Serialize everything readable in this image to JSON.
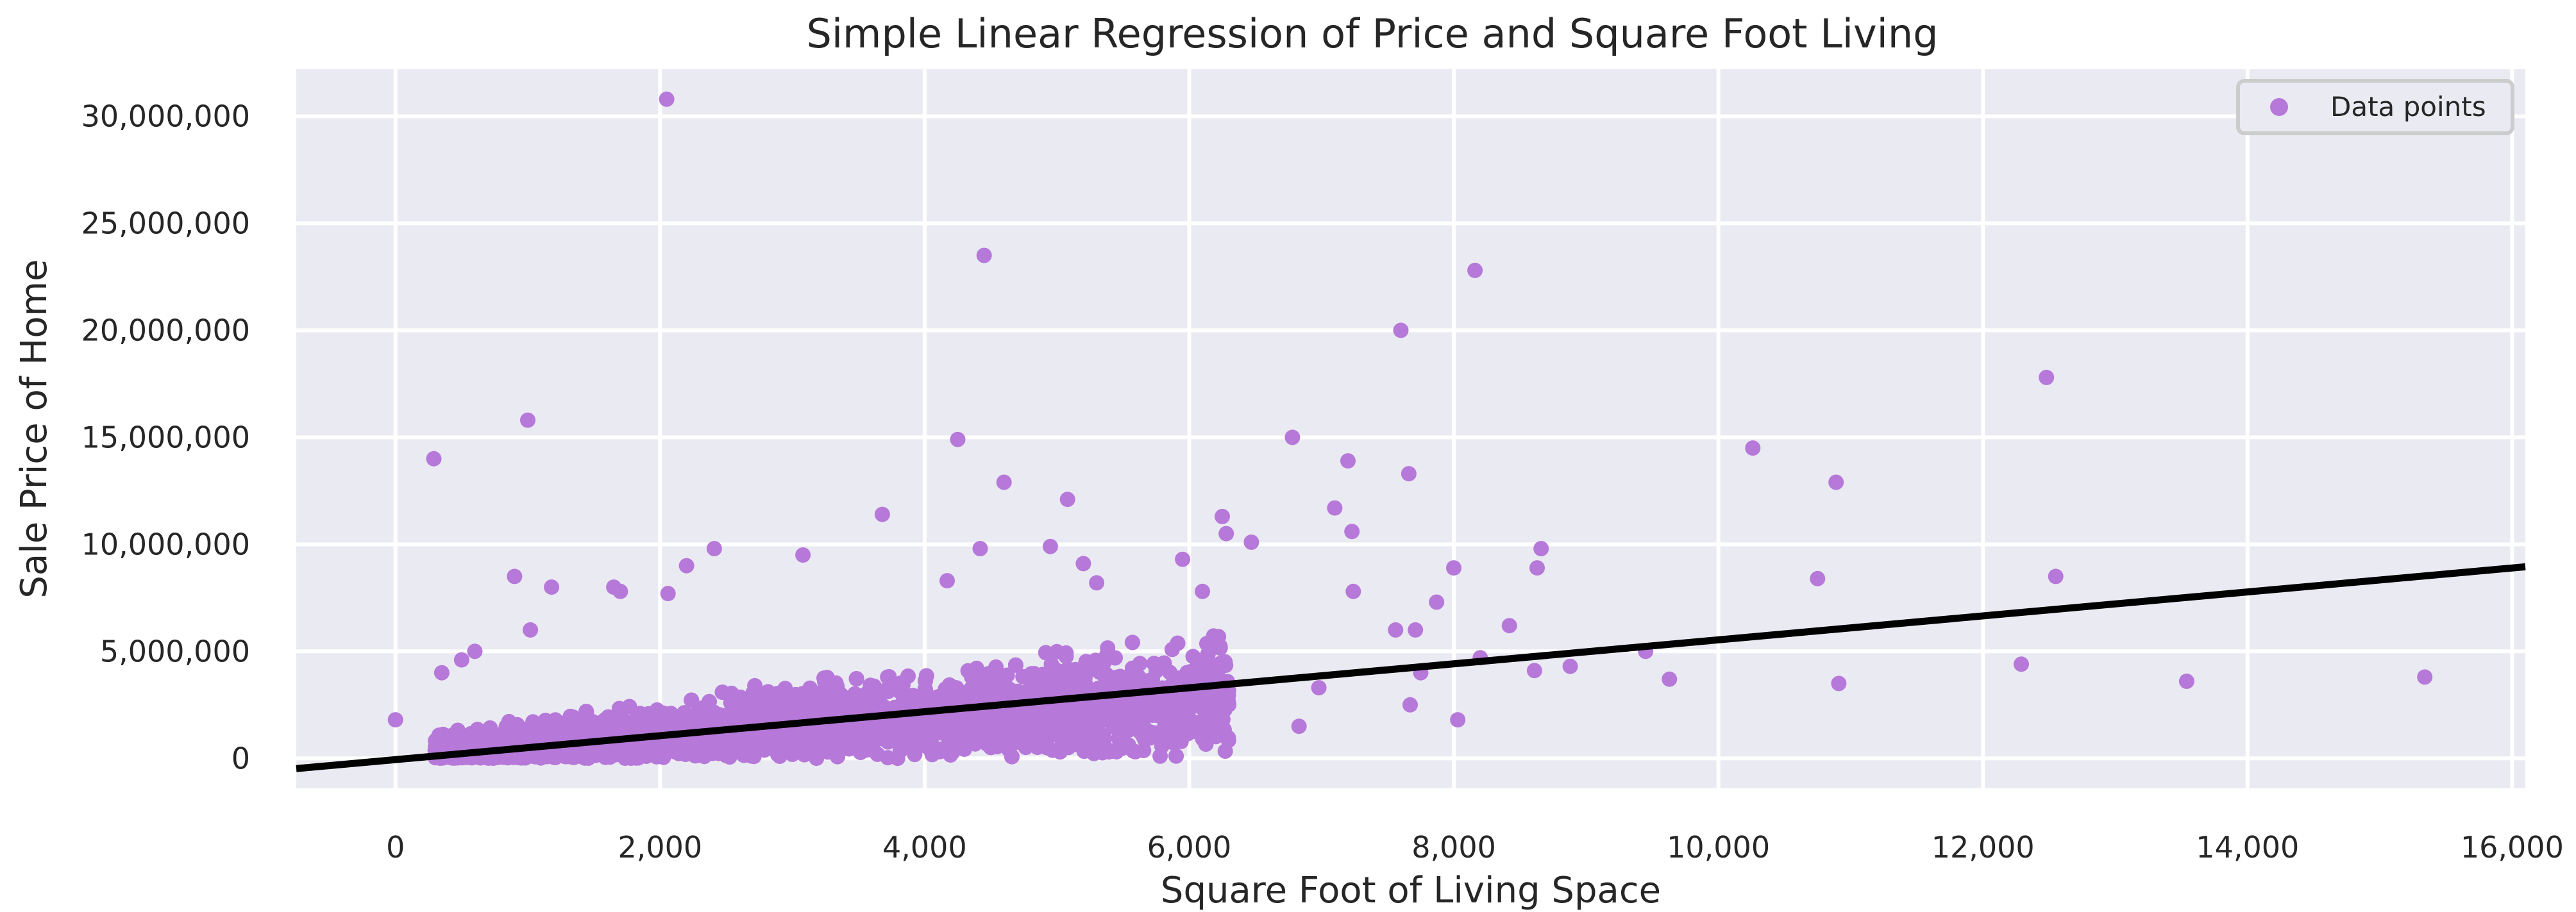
{
  "chart_data": {
    "type": "scatter",
    "title": "Simple Linear Regression of Price and Square Foot Living",
    "xlabel": "Square Foot of Living Space",
    "ylabel": "Sale Price of Home",
    "xlim": [
      -750,
      16100
    ],
    "ylim": [
      -1400000,
      32200000
    ],
    "xticks": [
      0,
      2000,
      4000,
      6000,
      8000,
      10000,
      12000,
      14000,
      16000
    ],
    "xtick_labels": [
      "0",
      "2,000",
      "4,000",
      "6,000",
      "8,000",
      "10,000",
      "12,000",
      "14,000",
      "16,000"
    ],
    "yticks": [
      0,
      5000000,
      10000000,
      15000000,
      20000000,
      25000000,
      30000000
    ],
    "ytick_labels": [
      "0",
      "5,000,000",
      "10,000,000",
      "15,000,000",
      "20,000,000",
      "25,000,000",
      "30,000,000"
    ],
    "grid": true,
    "legend": {
      "placement": "top-right",
      "entries": [
        "Data points"
      ]
    },
    "colors": {
      "points": "#b678d9",
      "line": "#000000",
      "plot_bg": "#eaeaf2",
      "grid": "#ffffff"
    },
    "series": [
      {
        "name": "Data points",
        "points": [
          [
            0,
            1800000
          ],
          [
            290,
            14000000
          ],
          [
            1000,
            15800000
          ],
          [
            2050,
            30800000
          ],
          [
            4450,
            23500000
          ],
          [
            8160,
            22800000
          ],
          [
            7600,
            20000000
          ],
          [
            12480,
            17800000
          ],
          [
            4250,
            14900000
          ],
          [
            6780,
            15000000
          ],
          [
            10260,
            14500000
          ],
          [
            7200,
            13900000
          ],
          [
            7660,
            13300000
          ],
          [
            4600,
            12900000
          ],
          [
            10890,
            12900000
          ],
          [
            5080,
            12100000
          ],
          [
            7100,
            11700000
          ],
          [
            3680,
            11400000
          ],
          [
            6250,
            11300000
          ],
          [
            7230,
            10600000
          ],
          [
            6280,
            10500000
          ],
          [
            8660,
            9800000
          ],
          [
            4420,
            9800000
          ],
          [
            8000,
            8900000
          ],
          [
            10750,
            8400000
          ],
          [
            12550,
            8500000
          ],
          [
            8630,
            8900000
          ],
          [
            2410,
            9800000
          ],
          [
            3080,
            9500000
          ],
          [
            900,
            8500000
          ],
          [
            1180,
            8000000
          ],
          [
            1650,
            8000000
          ],
          [
            4170,
            8300000
          ],
          [
            5300,
            8200000
          ],
          [
            6470,
            10100000
          ],
          [
            5950,
            9300000
          ],
          [
            7240,
            7800000
          ],
          [
            7870,
            7300000
          ],
          [
            7710,
            6000000
          ],
          [
            7560,
            6000000
          ],
          [
            8420,
            6200000
          ],
          [
            8200,
            4700000
          ],
          [
            8610,
            4100000
          ],
          [
            8880,
            4300000
          ],
          [
            9450,
            5000000
          ],
          [
            9630,
            3700000
          ],
          [
            10910,
            3500000
          ],
          [
            12290,
            4400000
          ],
          [
            13540,
            3600000
          ],
          [
            15340,
            3800000
          ],
          [
            8030,
            1800000
          ],
          [
            7670,
            2500000
          ],
          [
            6980,
            3300000
          ],
          [
            6830,
            1500000
          ],
          [
            7750,
            4000000
          ],
          [
            5780,
            100000
          ],
          [
            5450,
            300000
          ],
          [
            2200,
            9000000
          ],
          [
            1700,
            7800000
          ],
          [
            600,
            5000000
          ],
          [
            350,
            4000000
          ],
          [
            500,
            4600000
          ],
          [
            1020,
            6000000
          ],
          [
            2060,
            7700000
          ],
          [
            4950,
            9900000
          ],
          [
            5200,
            9100000
          ],
          [
            6100,
            7800000
          ]
        ]
      }
    ],
    "regression_line": {
      "x": [
        -750,
        16100
      ],
      "y": [
        -480000,
        8950000
      ]
    }
  }
}
